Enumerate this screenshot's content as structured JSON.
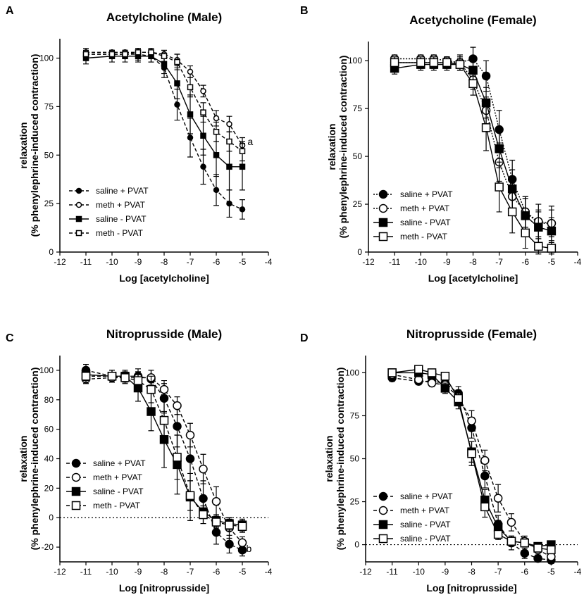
{
  "chart_data": [
    {
      "id": "A",
      "type": "line",
      "panel_letter": "A",
      "title": "Acetylcholine (Male)",
      "xlabel": "Log [acetylcholine]",
      "ylabel_line1": "relaxation",
      "ylabel_line2": "(% phenylephrine-induced contraction)",
      "xlim": [
        -12,
        -4
      ],
      "ylim": [
        0,
        110
      ],
      "xticks": [
        -12,
        -11,
        -10,
        -9,
        -8,
        -7,
        -6,
        -5,
        -4
      ],
      "xtick_labels": [
        "-12",
        "-11",
        "-10",
        "-9",
        "-8",
        "-7",
        "-6",
        "-5",
        "-4"
      ],
      "yticks": [
        0,
        25,
        50,
        75,
        100
      ],
      "ytick_labels": [
        "0",
        "25",
        "50",
        "75",
        "100"
      ],
      "zero_line": false,
      "marker_size": "small",
      "legend_position": "bottom-left",
      "annotation": {
        "text": "a",
        "x": -4.8,
        "y": 57
      },
      "series": [
        {
          "name": "saline + PVAT",
          "marker": "filled-circle",
          "line": "dashed",
          "x": [
            -11,
            -10,
            -9.5,
            -9,
            -8.5,
            -8,
            -7.5,
            -7,
            -6.5,
            -6,
            -5.5,
            -5
          ],
          "y": [
            102,
            102,
            102,
            102,
            101,
            95,
            76,
            59,
            44,
            32,
            25,
            22
          ],
          "err": [
            2,
            2,
            2,
            3,
            3,
            5,
            8,
            10,
            9,
            8,
            7,
            5
          ]
        },
        {
          "name": "meth + PVAT",
          "marker": "open-circle",
          "line": "dashed",
          "x": [
            -11,
            -10,
            -9.5,
            -9,
            -8.5,
            -8,
            -7.5,
            -7,
            -6.5,
            -6,
            -5.5,
            -5
          ],
          "y": [
            103,
            103,
            103,
            103,
            103,
            102,
            99,
            93,
            83,
            69,
            66,
            55
          ],
          "err": [
            2,
            1,
            1,
            2,
            2,
            2,
            3,
            3,
            3,
            4,
            4,
            4
          ]
        },
        {
          "name": "saline - PVAT",
          "marker": "filled-square",
          "line": "solid",
          "x": [
            -11,
            -10,
            -9.5,
            -9,
            -8.5,
            -8,
            -7.5,
            -7,
            -6.5,
            -6,
            -5.5,
            -5
          ],
          "y": [
            100,
            101,
            101,
            101,
            101,
            97,
            87,
            71,
            60,
            50,
            44,
            44
          ],
          "err": [
            3,
            3,
            3,
            3,
            3,
            5,
            8,
            10,
            10,
            11,
            12,
            12
          ]
        },
        {
          "name": "meth - PVAT",
          "marker": "open-square",
          "line": "dashed",
          "x": [
            -11,
            -10,
            -9.5,
            -9,
            -8.5,
            -8,
            -7.5,
            -7,
            -6.5,
            -6,
            -5.5,
            -5
          ],
          "y": [
            102,
            102,
            102,
            103,
            103,
            101,
            98,
            85,
            72,
            62,
            57,
            52
          ],
          "err": [
            2,
            2,
            2,
            2,
            2,
            3,
            4,
            5,
            5,
            5,
            5,
            5
          ]
        }
      ]
    },
    {
      "id": "B",
      "type": "line",
      "panel_letter": "B",
      "title": "Acetycholine (Female)",
      "xlabel": "Log [acetylcholine]",
      "ylabel_line1": "relaxation",
      "ylabel_line2": "(% phenylephrine-induced contraction)",
      "xlim": [
        -12,
        -4
      ],
      "ylim": [
        0,
        110
      ],
      "xticks": [
        -12,
        -11,
        -10,
        -9,
        -8,
        -7,
        -6,
        -5,
        -4
      ],
      "xtick_labels": [
        "-12",
        "-11",
        "-10",
        "-9",
        "-8",
        "-7",
        "-6",
        "-5",
        "-4"
      ],
      "yticks": [
        0,
        25,
        50,
        75,
        100
      ],
      "ytick_labels": [
        "0",
        "25",
        "50",
        "75",
        "100"
      ],
      "zero_line": false,
      "marker_size": "large",
      "legend_position": "bottom-left",
      "annotation": null,
      "series": [
        {
          "name": "saline + PVAT",
          "marker": "filled-circle",
          "line": "dotted",
          "x": [
            -11,
            -10,
            -9.5,
            -9,
            -8.5,
            -8,
            -7.5,
            -7,
            -6.5,
            -6,
            -5.5,
            -5
          ],
          "y": [
            99,
            99,
            99,
            99,
            99,
            101,
            92,
            64,
            38,
            21,
            15,
            15
          ],
          "err": [
            3,
            3,
            3,
            3,
            4,
            6,
            8,
            10,
            10,
            8,
            7,
            7
          ]
        },
        {
          "name": "meth + PVAT",
          "marker": "open-circle",
          "line": "dotted",
          "x": [
            -11,
            -10,
            -9.5,
            -9,
            -8.5,
            -8,
            -7.5,
            -7,
            -6.5,
            -6,
            -5.5,
            -5
          ],
          "y": [
            101,
            101,
            101,
            100,
            99,
            90,
            74,
            47,
            29,
            21,
            16,
            15
          ],
          "err": [
            2,
            2,
            2,
            2,
            3,
            5,
            7,
            10,
            9,
            8,
            9,
            9
          ]
        },
        {
          "name": "saline - PVAT",
          "marker": "filled-square",
          "line": "solid",
          "x": [
            -11,
            -10,
            -9.5,
            -9,
            -8.5,
            -8,
            -7.5,
            -7,
            -6.5,
            -6,
            -5.5,
            -5
          ],
          "y": [
            96,
            98,
            98,
            98,
            98,
            95,
            78,
            54,
            33,
            19,
            13,
            11
          ],
          "err": [
            3,
            3,
            3,
            3,
            3,
            5,
            8,
            10,
            10,
            9,
            8,
            7
          ]
        },
        {
          "name": "meth - PVAT",
          "marker": "open-square",
          "line": "solid",
          "x": [
            -11,
            -10,
            -9.5,
            -9,
            -8.5,
            -8,
            -7.5,
            -7,
            -6.5,
            -6,
            -5.5,
            -5
          ],
          "y": [
            99,
            99,
            99,
            99,
            98,
            88,
            65,
            34,
            21,
            10,
            3,
            2
          ],
          "err": [
            3,
            3,
            3,
            3,
            3,
            6,
            12,
            13,
            11,
            8,
            4,
            3
          ]
        }
      ]
    },
    {
      "id": "C",
      "type": "line",
      "panel_letter": "C",
      "title": "Nitroprusside (Male)",
      "xlabel": "Log [nitroprusside]",
      "ylabel_line1": "relaxation",
      "ylabel_line2": "(% phenylephrine-induced contraction)",
      "xlim": [
        -12,
        -4
      ],
      "ylim": [
        -30,
        110
      ],
      "xticks": [
        -12,
        -11,
        -10,
        -9,
        -8,
        -7,
        -6,
        -5,
        -4
      ],
      "xtick_labels": [
        "-12",
        "-11",
        "-10",
        "-9",
        "-8",
        "-7",
        "-6",
        "-5",
        "-4"
      ],
      "yticks": [
        -20,
        0,
        20,
        40,
        60,
        80,
        100
      ],
      "ytick_labels": [
        "-20",
        "0",
        "20",
        "40",
        "60",
        "80",
        "100"
      ],
      "zero_line": true,
      "marker_size": "large",
      "legend_position": "bottom-left",
      "annotation": {
        "text": "b",
        "x": -4.85,
        "y": -21
      },
      "series": [
        {
          "name": "saline + PVAT",
          "marker": "filled-circle",
          "line": "dashed",
          "x": [
            -11,
            -10,
            -9.5,
            -9,
            -8.5,
            -8,
            -7.5,
            -7,
            -6.5,
            -6,
            -5.5,
            -5
          ],
          "y": [
            100,
            96,
            96,
            96,
            94,
            81,
            62,
            40,
            13,
            -10,
            -18,
            -22
          ],
          "err": [
            4,
            4,
            4,
            5,
            6,
            10,
            14,
            15,
            12,
            8,
            6,
            4
          ]
        },
        {
          "name": "meth + PVAT",
          "marker": "open-circle",
          "line": "dashed",
          "x": [
            -11,
            -10,
            -9.5,
            -9,
            -8.5,
            -8,
            -7.5,
            -7,
            -6.5,
            -6,
            -5.5,
            -5
          ],
          "y": [
            94,
            95,
            95,
            95,
            95,
            87,
            76,
            56,
            33,
            11,
            -7,
            -17
          ],
          "err": [
            3,
            3,
            3,
            4,
            5,
            6,
            6,
            8,
            10,
            10,
            7,
            4
          ]
        },
        {
          "name": "saline - PVAT",
          "marker": "filled-square",
          "line": "solid",
          "x": [
            -11,
            -10,
            -9.5,
            -9,
            -8.5,
            -8,
            -7.5,
            -7,
            -6.5,
            -6,
            -5.5,
            -5
          ],
          "y": [
            97,
            96,
            96,
            88,
            72,
            53,
            36,
            14,
            4,
            -2,
            -4,
            -5
          ],
          "err": [
            4,
            4,
            4,
            9,
            13,
            19,
            20,
            16,
            8,
            4,
            4,
            4
          ]
        },
        {
          "name": "meth - PVAT",
          "marker": "open-square",
          "line": "dashed",
          "x": [
            -11,
            -10,
            -9.5,
            -9,
            -8.5,
            -8,
            -7.5,
            -7,
            -6.5,
            -6,
            -5.5,
            -5
          ],
          "y": [
            96,
            96,
            95,
            93,
            87,
            66,
            41,
            15,
            2,
            -3,
            -5,
            -6
          ],
          "err": [
            4,
            4,
            4,
            6,
            9,
            14,
            15,
            10,
            6,
            4,
            4,
            4
          ]
        }
      ]
    },
    {
      "id": "D",
      "type": "line",
      "panel_letter": "D",
      "title": "Nitroprusside (Female)",
      "xlabel": "Log [nitroprusside]",
      "ylabel_line1": "relaxation",
      "ylabel_line2": "(% phenylephrine-induced contraction)",
      "xlim": [
        -12,
        -4
      ],
      "ylim": [
        -10,
        110
      ],
      "xticks": [
        -12,
        -11,
        -10,
        -9,
        -8,
        -7,
        -6,
        -5,
        -4
      ],
      "xtick_labels": [
        "-12",
        "-11",
        "-10",
        "-9",
        "-8",
        "-7",
        "-6",
        "-5",
        "-4"
      ],
      "yticks": [
        0,
        25,
        50,
        75,
        100
      ],
      "ytick_labels": [
        "0",
        "25",
        "50",
        "75",
        "100"
      ],
      "zero_line": true,
      "marker_size": "large",
      "legend_position": "bottom-left",
      "annotation": null,
      "series": [
        {
          "name": "saline + PVAT",
          "marker": "filled-circle",
          "line": "dashed",
          "x": [
            -11,
            -10,
            -9.5,
            -9,
            -8.5,
            -8,
            -7.5,
            -7,
            -6.5,
            -6,
            -5.5,
            -5
          ],
          "y": [
            97,
            95,
            95,
            94,
            88,
            68,
            40,
            12,
            1,
            -5,
            -8,
            -9
          ],
          "err": [
            2,
            2,
            2,
            3,
            4,
            6,
            7,
            5,
            4,
            3,
            2,
            2
          ]
        },
        {
          "name": "meth + PVAT",
          "marker": "open-circle",
          "line": "dashed",
          "x": [
            -11,
            -10,
            -9.5,
            -9,
            -8.5,
            -8,
            -7.5,
            -7,
            -6.5,
            -6,
            -5.5,
            -5
          ],
          "y": [
            99,
            96,
            94,
            93,
            86,
            72,
            49,
            27,
            13,
            2,
            -3,
            -7
          ],
          "err": [
            2,
            2,
            2,
            3,
            4,
            6,
            6,
            8,
            5,
            3,
            3,
            2
          ]
        },
        {
          "name": "saline - PVAT",
          "marker": "filled-square",
          "line": "solid",
          "x": [
            -11,
            -10,
            -9.5,
            -9,
            -8.5,
            -8,
            -7.5,
            -7,
            -6.5,
            -6,
            -5.5,
            -5
          ],
          "y": [
            100,
            100,
            99,
            91,
            83,
            54,
            26,
            10,
            2,
            1,
            -1,
            0
          ],
          "err": [
            2,
            2,
            2,
            3,
            4,
            6,
            6,
            4,
            3,
            2,
            2,
            2
          ]
        },
        {
          "name": "saline - PVAT",
          "marker": "open-square",
          "line": "solid",
          "x": [
            -11,
            -10,
            -9.5,
            -9,
            -8.5,
            -8,
            -7.5,
            -7,
            -6.5,
            -6,
            -5.5,
            -5
          ],
          "y": [
            100,
            102,
            100,
            98,
            85,
            53,
            22,
            6,
            2,
            1,
            -2,
            -3
          ],
          "err": [
            2,
            2,
            2,
            2,
            4,
            7,
            6,
            3,
            2,
            2,
            2,
            2
          ]
        }
      ]
    }
  ]
}
